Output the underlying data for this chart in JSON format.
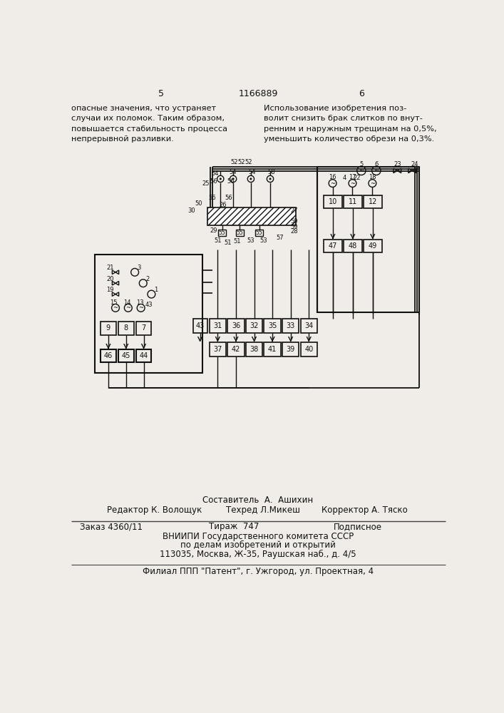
{
  "bg_color": "#f0ede8",
  "page_num_left": "5",
  "page_num_center": "1166889",
  "page_num_right": "6",
  "left_text": "опасные значения, что устраняет\nслучаи их поломок. Таким образом,\nповышается стабильность процесса\nнепрерывной разливки.",
  "right_text": "Использование изобретения поз-\nволит снизить брак слитков по внут-\nренним и наружным трещинам на 0,5%,\nуменьшить количество обрези на 0,3%.",
  "footer_line1": "Составитель  А.  Ашихин",
  "footer_line2_left": "Редактор К. Волощук",
  "footer_line2_mid": "Техред Л.Микеш",
  "footer_line2_right": "Корректор А. Тяско",
  "footer_line3_left": "Заказ 4360/11",
  "footer_line3_mid": "Тираж  747",
  "footer_line3_right": "Подписное",
  "footer_line4": "ВНИИПИ Государственного комитета СССР",
  "footer_line5": "по делам изобретений и открытий",
  "footer_line6": "113035, Москва, Ж-35, Раушская наб., д. 4/5",
  "footer_line7": "Филиал ППП \"Патент\", г. Ужгород, ул. Проектная, 4"
}
